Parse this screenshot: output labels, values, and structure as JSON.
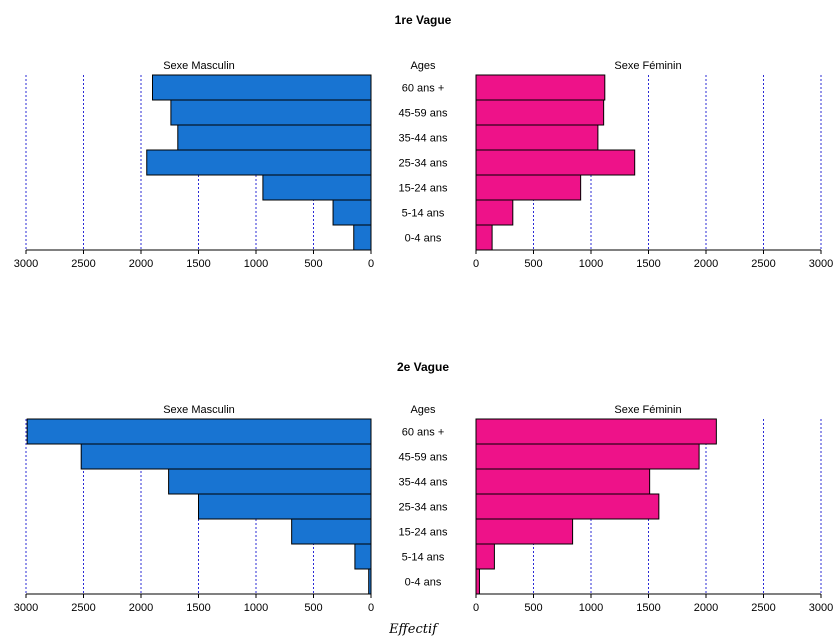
{
  "chart_data": [
    {
      "type": "bar",
      "title": "1re Vague",
      "categories_label": "Ages",
      "categories": [
        "60 ans +",
        "45-59 ans",
        "35-44 ans",
        "25-34 ans",
        "15-24 ans",
        "5-14 ans",
        "0-4 ans"
      ],
      "series": [
        {
          "name": "Sexe Masculin",
          "color": "#1874d2",
          "values": [
            1900,
            1740,
            1680,
            1950,
            940,
            330,
            150
          ]
        },
        {
          "name": "Sexe Féminin",
          "color": "#ee1289",
          "values": [
            1120,
            1110,
            1060,
            1380,
            910,
            320,
            140
          ]
        }
      ],
      "xlim": [
        0,
        3000
      ],
      "ticks": [
        "3000",
        "2500",
        "2000",
        "1500",
        "1000",
        "500",
        "0"
      ],
      "ticks_right": [
        "0",
        "500",
        "1000",
        "1500",
        "2000",
        "2500",
        "3000"
      ],
      "grid": "vertical dotted blue"
    },
    {
      "type": "bar",
      "title": "2e Vague",
      "categories_label": "Ages",
      "categories": [
        "60 ans +",
        "45-59 ans",
        "35-44 ans",
        "25-34 ans",
        "15-24 ans",
        "5-14 ans",
        "0-4 ans"
      ],
      "series": [
        {
          "name": "Sexe Masculin",
          "color": "#1874d2",
          "values": [
            2990,
            2520,
            1760,
            1500,
            690,
            140,
            20
          ]
        },
        {
          "name": "Sexe Féminin",
          "color": "#ee1289",
          "values": [
            2090,
            1940,
            1510,
            1590,
            840,
            160,
            30
          ]
        }
      ],
      "xlim": [
        0,
        3000
      ],
      "ticks": [
        "3000",
        "2500",
        "2000",
        "1500",
        "1000",
        "500",
        "0"
      ],
      "ticks_right": [
        "0",
        "500",
        "1000",
        "1500",
        "2000",
        "2500",
        "3000"
      ],
      "grid": "vertical dotted blue"
    }
  ],
  "xlabel": "Effectif"
}
